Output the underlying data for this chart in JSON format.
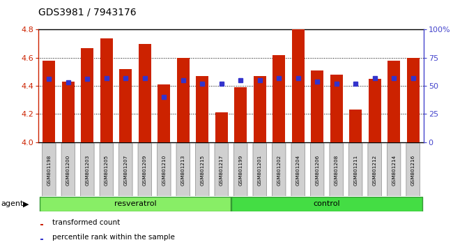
{
  "title": "GDS3981 / 7943176",
  "samples": [
    "GSM801198",
    "GSM801200",
    "GSM801203",
    "GSM801205",
    "GSM801207",
    "GSM801209",
    "GSM801210",
    "GSM801213",
    "GSM801215",
    "GSM801217",
    "GSM801199",
    "GSM801201",
    "GSM801202",
    "GSM801204",
    "GSM801206",
    "GSM801208",
    "GSM801211",
    "GSM801212",
    "GSM801214",
    "GSM801216"
  ],
  "transformed_count": [
    4.58,
    4.43,
    4.67,
    4.74,
    4.52,
    4.7,
    4.41,
    4.6,
    4.47,
    4.21,
    4.39,
    4.47,
    4.62,
    4.8,
    4.51,
    4.48,
    4.23,
    4.45,
    4.58,
    4.6
  ],
  "percentile_rank": [
    56,
    53,
    56,
    57,
    57,
    57,
    40,
    55,
    52,
    52,
    55,
    55,
    57,
    57,
    54,
    52,
    52,
    57,
    57,
    57
  ],
  "ylim_left": [
    4.0,
    4.8
  ],
  "ylim_right": [
    0,
    100
  ],
  "yticks_left": [
    4.0,
    4.2,
    4.4,
    4.6,
    4.8
  ],
  "yticks_right": [
    0,
    25,
    50,
    75,
    100
  ],
  "ytick_labels_right": [
    "0",
    "25",
    "50",
    "75",
    "100%"
  ],
  "bar_color": "#cc2200",
  "dot_color": "#3333cc",
  "resveratrol_color": "#88ee66",
  "control_color": "#44dd44",
  "left_axis_color": "#cc2200",
  "right_axis_color": "#4444cc",
  "agent_label": "agent",
  "resveratrol_label": "resveratrol",
  "control_label": "control",
  "legend_bar_label": "transformed count",
  "legend_dot_label": "percentile rank within the sample",
  "plot_bg_color": "#ffffff"
}
